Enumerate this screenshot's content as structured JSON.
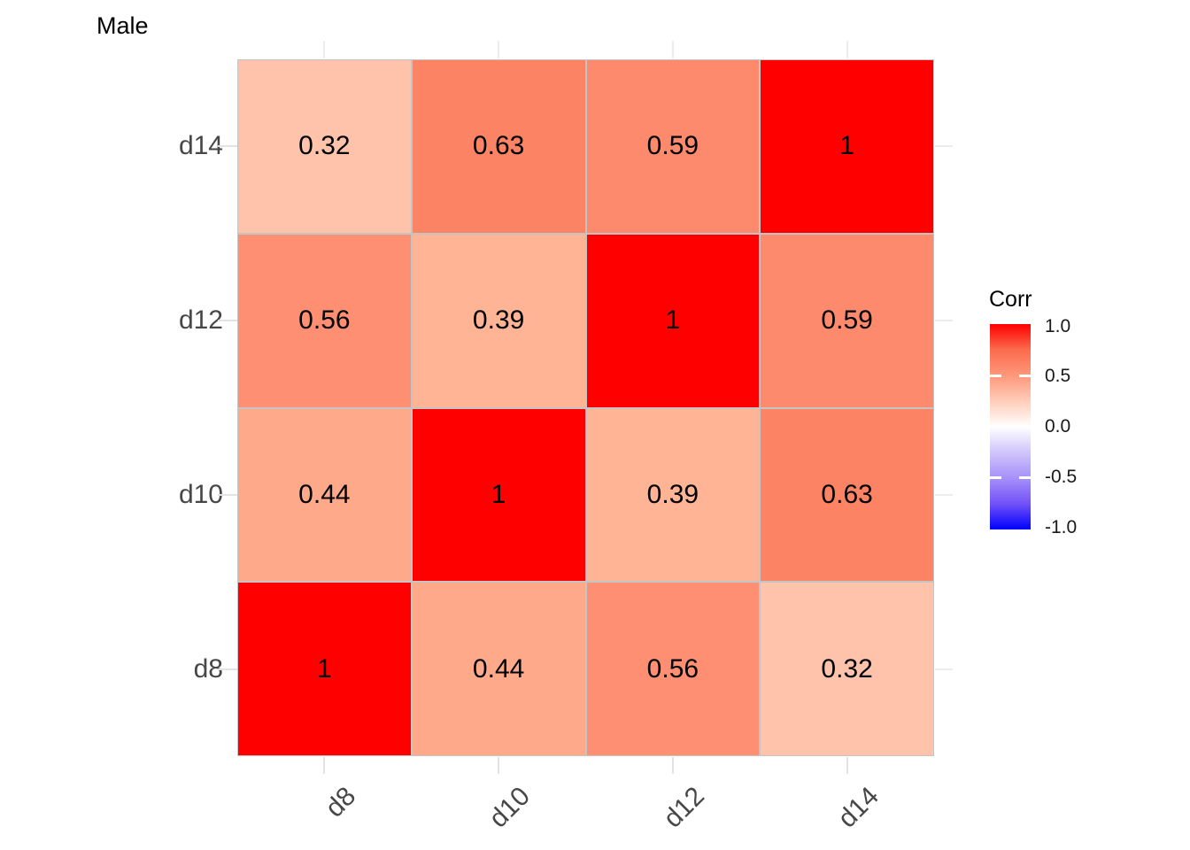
{
  "title": "Male",
  "chart_data": {
    "type": "heatmap",
    "title": "Male",
    "x_categories": [
      "d8",
      "d10",
      "d12",
      "d14"
    ],
    "y_categories_top_to_bottom": [
      "d14",
      "d12",
      "d10",
      "d8"
    ],
    "rows": [
      {
        "label": "d14",
        "cells": [
          {
            "text": "0.32",
            "value": 0.32,
            "color": "#FFC3AB"
          },
          {
            "text": "0.63",
            "value": 0.63,
            "color": "#FC8465"
          },
          {
            "text": "0.59",
            "value": 0.59,
            "color": "#FD8A6C"
          },
          {
            "text": "1",
            "value": 1.0,
            "color": "#FF0000"
          }
        ]
      },
      {
        "label": "d12",
        "cells": [
          {
            "text": "0.56",
            "value": 0.56,
            "color": "#FE8F72"
          },
          {
            "text": "0.39",
            "value": 0.39,
            "color": "#FFB496"
          },
          {
            "text": "1",
            "value": 1.0,
            "color": "#FF0000"
          },
          {
            "text": "0.59",
            "value": 0.59,
            "color": "#FD8A6C"
          }
        ]
      },
      {
        "label": "d10",
        "cells": [
          {
            "text": "0.44",
            "value": 0.44,
            "color": "#FFA98B"
          },
          {
            "text": "1",
            "value": 1.0,
            "color": "#FF0000"
          },
          {
            "text": "0.39",
            "value": 0.39,
            "color": "#FFB496"
          },
          {
            "text": "0.63",
            "value": 0.63,
            "color": "#FC8465"
          }
        ]
      },
      {
        "label": "d8",
        "cells": [
          {
            "text": "1",
            "value": 1.0,
            "color": "#FF0000"
          },
          {
            "text": "0.44",
            "value": 0.44,
            "color": "#FFA98B"
          },
          {
            "text": "0.56",
            "value": 0.56,
            "color": "#FE8F72"
          },
          {
            "text": "0.32",
            "value": 0.32,
            "color": "#FFC3AB"
          }
        ]
      }
    ],
    "legend": {
      "title": "Corr",
      "position": "right",
      "range": [
        -1,
        1
      ],
      "ticks": [
        {
          "label": "1.0",
          "value": 1.0
        },
        {
          "label": "0.5",
          "value": 0.5
        },
        {
          "label": "0.0",
          "value": 0.0
        },
        {
          "label": "-0.5",
          "value": -0.5
        },
        {
          "label": "-1.0",
          "value": -1.0
        }
      ],
      "high_color": "#FF0000",
      "mid_color": "#FFFFFF",
      "low_color": "#0000FF",
      "gradient_stops_top_to_bottom": [
        {
          "pos": 0,
          "color": "#FF0000"
        },
        {
          "pos": 12.5,
          "color": "#FC6B4D"
        },
        {
          "pos": 25,
          "color": "#FE977A"
        },
        {
          "pos": 37.5,
          "color": "#FFCDB9"
        },
        {
          "pos": 50,
          "color": "#FFFFFF"
        },
        {
          "pos": 62.5,
          "color": "#D0C4FB"
        },
        {
          "pos": 75,
          "color": "#A690FA"
        },
        {
          "pos": 87.5,
          "color": "#7251F7"
        },
        {
          "pos": 100,
          "color": "#0000FF"
        }
      ]
    },
    "colors": {
      "cell_border": "#C4C4C4",
      "axis_text": "#474747",
      "value_text": "#000000",
      "tick": "#E3E3E3",
      "grid_stub": "#EDEDED",
      "background": "#FFFFFF"
    },
    "grid": "minimal stubs outside panel",
    "x_tick_label_rotation_deg": 45
  }
}
